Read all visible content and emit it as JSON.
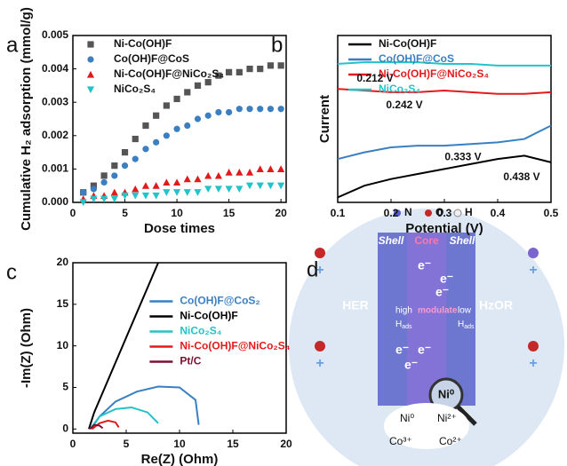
{
  "chart_data": [
    {
      "type": "scatter",
      "label": "a",
      "xlabel": "Dose times",
      "ylabel": "Cumulative H₂ adsorption (mmol/g)",
      "x": [
        1,
        2,
        3,
        4,
        5,
        6,
        7,
        8,
        9,
        10,
        11,
        12,
        13,
        14,
        15,
        16,
        17,
        18,
        19,
        20
      ],
      "xlim": [
        0,
        20.5
      ],
      "xticks": [
        0,
        5,
        10,
        15,
        20
      ],
      "ylim": [
        0,
        0.005
      ],
      "yticks": [
        {
          "value": 0,
          "label": "0.000"
        },
        {
          "value": 0.001,
          "label": "0.001"
        },
        {
          "value": 0.002,
          "label": "0.002"
        },
        {
          "value": 0.003,
          "label": "0.003"
        },
        {
          "value": 0.004,
          "label": "0.004"
        },
        {
          "value": 0.005,
          "label": "0.005"
        }
      ],
      "legend": "upper left",
      "series": [
        {
          "name": "Ni-Co(OH)F",
          "color": "#555555",
          "marker": "square",
          "values": [
            0.0003,
            0.0005,
            0.0008,
            0.0011,
            0.0015,
            0.0019,
            0.0023,
            0.0026,
            0.0029,
            0.0031,
            0.0033,
            0.0035,
            0.0036,
            0.0038,
            0.0039,
            0.0039,
            0.004,
            0.004,
            0.0041,
            0.0041
          ]
        },
        {
          "name": "Co(OH)F@CoS",
          "color": "#3a7fc1",
          "marker": "circle",
          "values": [
            0.0003,
            0.0004,
            0.0006,
            0.0008,
            0.0011,
            0.0013,
            0.0016,
            0.0018,
            0.002,
            0.0022,
            0.0023,
            0.0025,
            0.0026,
            0.0027,
            0.0027,
            0.0028,
            0.0028,
            0.0028,
            0.0028,
            0.0028
          ]
        },
        {
          "name": "Ni-Co(OH)F@NiCo₂S₄",
          "color": "#e31a1c",
          "marker": "triangle-up",
          "values": [
            0.0001,
            0.0002,
            0.0002,
            0.0003,
            0.0003,
            0.0004,
            0.0005,
            0.0005,
            0.0006,
            0.0006,
            0.0007,
            0.0007,
            0.0008,
            0.0008,
            0.0009,
            0.0009,
            0.0009,
            0.001,
            0.001,
            0.001
          ]
        },
        {
          "name": "NiCo₂S₄",
          "color": "#22c3c9",
          "marker": "triangle-down",
          "values": [
            0,
            0.0001,
            0.0001,
            0.0001,
            0.0002,
            0.0002,
            0.0002,
            0.0002,
            0.0003,
            0.0003,
            0.0003,
            0.0003,
            0.0004,
            0.0004,
            0.0004,
            0.0004,
            0.0005,
            0.0005,
            0.0005,
            0.0005
          ]
        }
      ]
    },
    {
      "type": "line",
      "label": "b",
      "xlabel": "Potential (V)",
      "ylabel": "Current",
      "x": [
        0.1,
        0.15,
        0.2,
        0.25,
        0.3,
        0.35,
        0.4,
        0.45,
        0.5
      ],
      "xlim": [
        0.1,
        0.5
      ],
      "xticks": [
        0.1,
        0.2,
        0.3,
        0.4,
        0.5
      ],
      "ylim": [
        0,
        10
      ],
      "legend": "upper left",
      "annotations": [
        "0.212 V",
        "0.242 V",
        "0.333 V",
        "0.438 V"
      ],
      "series": [
        {
          "name": "Ni-Co(OH)F",
          "color": "#000000",
          "values": [
            0.3,
            1.0,
            1.4,
            1.7,
            2.0,
            2.3,
            2.6,
            2.8,
            2.4
          ]
        },
        {
          "name": "Co(OH)F@CoS",
          "color": "#3a7fc1",
          "values": [
            2.6,
            3.0,
            3.3,
            3.4,
            3.4,
            3.5,
            3.6,
            3.8,
            4.6
          ]
        },
        {
          "name": "Ni-Co(OH)F@NiCo₂S₄",
          "color": "#e31a1c",
          "values": [
            6.8,
            6.7,
            6.6,
            6.6,
            6.7,
            6.6,
            6.5,
            6.5,
            6.6
          ]
        },
        {
          "name": "NiCo₂S₄",
          "color": "#22c3c9",
          "values": [
            8.3,
            8.4,
            8.4,
            8.4,
            8.3,
            8.3,
            8.2,
            8.2,
            8.2
          ]
        }
      ]
    },
    {
      "type": "line",
      "label": "c",
      "xlabel": "Re(Z) (Ohm)",
      "ylabel": "-Im(Z) (Ohm)",
      "xlim": [
        0,
        20
      ],
      "xticks": [
        0,
        5,
        10,
        15,
        20
      ],
      "ylim": [
        -0.5,
        20
      ],
      "yticks": [
        0,
        5,
        10,
        15,
        20
      ],
      "legend": "center right",
      "series": [
        {
          "name": "Co(OH)F@CoS₂",
          "color": "#3a7fc1",
          "x": [
            1.7,
            2.5,
            4,
            6,
            8,
            10,
            11.5,
            11.8
          ],
          "values": [
            0,
            1.5,
            3.3,
            4.5,
            5.1,
            5.0,
            3.5,
            0.5
          ]
        },
        {
          "name": "Ni-Co(OH)F",
          "color": "#000000",
          "x": [
            1.5,
            2,
            3,
            4,
            5,
            6,
            7,
            8
          ],
          "values": [
            0,
            2,
            5,
            8,
            11,
            14,
            17,
            20
          ]
        },
        {
          "name": "NiCo₂S₄",
          "color": "#22c3c9",
          "x": [
            1.6,
            2.5,
            4,
            5.5,
            7,
            8
          ],
          "values": [
            0,
            1.5,
            2.4,
            2.6,
            2,
            0.7
          ]
        },
        {
          "name": "Ni-Co(OH)F@NiCo₂S₄",
          "color": "#e31a1c",
          "x": [
            1.8,
            2.5,
            3.3,
            4,
            4.3
          ],
          "values": [
            0,
            0.7,
            1.0,
            0.8,
            0.2
          ]
        },
        {
          "name": "Pt/C",
          "color": "#7a1030",
          "x": [
            1.6,
            2,
            2.5,
            2.8
          ],
          "values": [
            0,
            0.5,
            0.4,
            0.1
          ]
        }
      ]
    }
  ],
  "diagram": {
    "label": "d",
    "atoms": [
      "N",
      "O",
      "H"
    ],
    "regions": [
      "Shell",
      "Core",
      "Shell"
    ],
    "left": "HER",
    "right": "HzOR",
    "middle": [
      "high",
      "modulate",
      "low"
    ],
    "h": "H",
    "ads": "ads",
    "ni": "Ni⁰",
    "electrons": [
      "e⁻",
      "e⁻",
      "e⁻",
      "e⁻",
      "e⁻",
      "e⁻"
    ],
    "cycle": [
      "Ni⁰",
      "Ni²⁺",
      "Co³⁺",
      "Co²⁺"
    ],
    "plus": [
      "+",
      "+",
      "+",
      "+"
    ]
  }
}
